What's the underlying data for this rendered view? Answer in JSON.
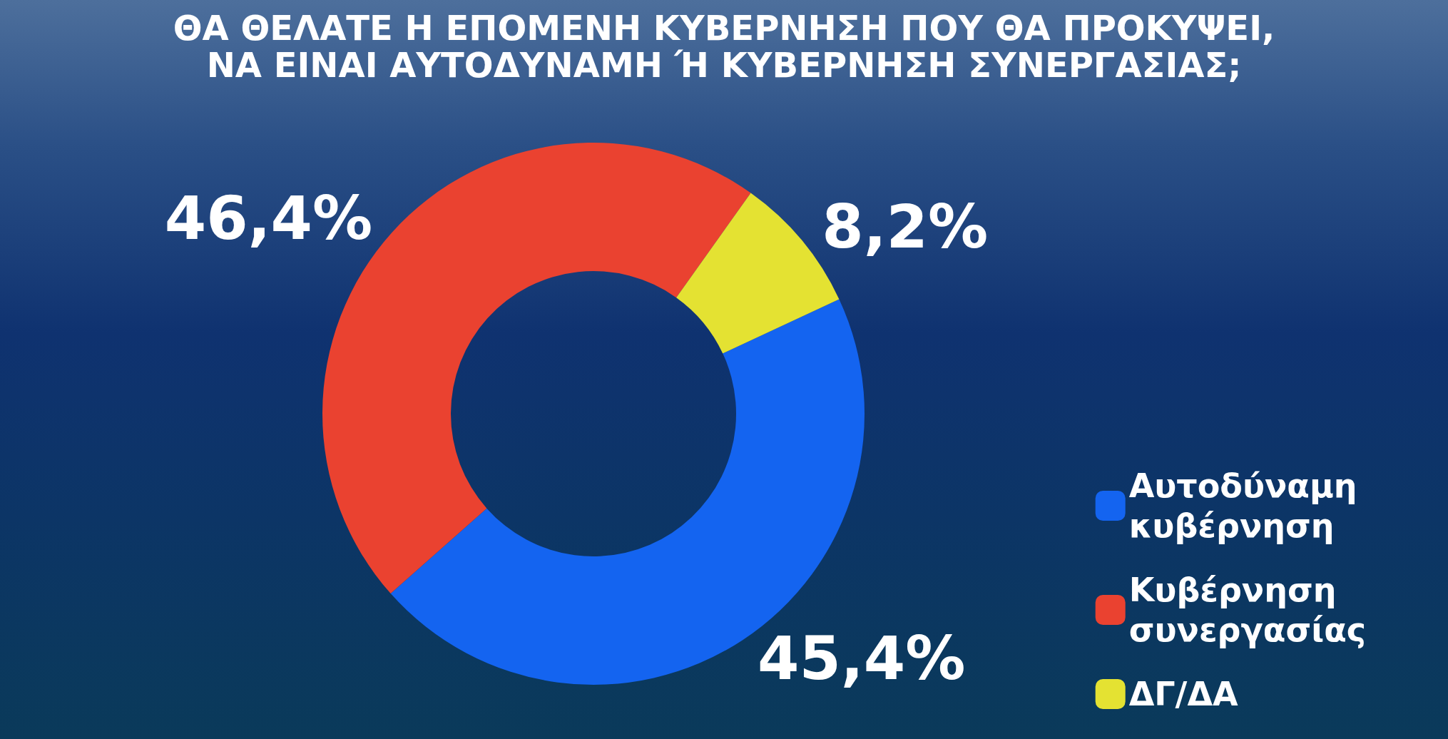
{
  "chart_data": {
    "type": "donut",
    "title": "ΘΑ ΘΕΛΑΤΕ Η ΕΠΟΜΕΝΗ ΚΥΒΕΡΝΗΣΗ ΠΟΥ ΘΑ ΠΡΟΚΥΨΕΙ, ΝΑ ΕΙΝΑΙ ΑΥΤΟΔΥΝΑΜΗ Ή ΚΥΒΕΡΝΗΣΗ ΣΥΝΕΡΓΑΣΙΑΣ;",
    "categories": [
      "Αυτοδύναμη κυβέρνηση",
      "Κυβέρνηση συνεργασίας",
      "ΔΓ/ΔΑ"
    ],
    "values": [
      45.4,
      46.4,
      8.2
    ],
    "colors": [
      "#1464f0",
      "#ea4230",
      "#e4e232"
    ],
    "value_labels": [
      "45,4%",
      "46,4%",
      "8,2%"
    ],
    "legend": "bottom right"
  }
}
